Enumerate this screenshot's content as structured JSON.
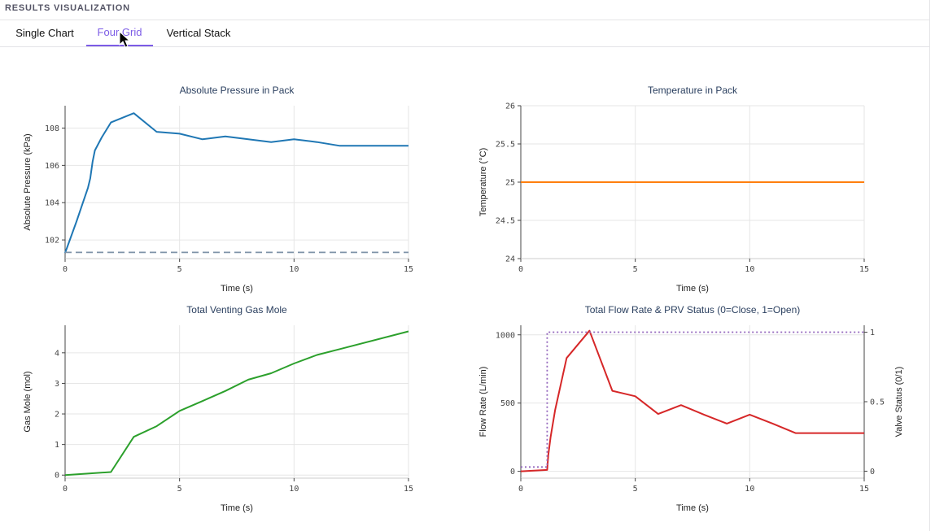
{
  "header": {
    "title": "RESULTS VISUALIZATION"
  },
  "tabs": [
    {
      "label": "Single Chart"
    },
    {
      "label": "Four Grid"
    },
    {
      "label": "Vertical Stack"
    }
  ],
  "chart_data": [
    {
      "type": "line",
      "title": "Absolute Pressure in Pack",
      "xlabel": "Time (s)",
      "ylabel": "Absolute Pressure (kPa)",
      "xlim": [
        0,
        15
      ],
      "ylim": [
        101.0,
        109.2
      ],
      "xticks": [
        0,
        5,
        10,
        15
      ],
      "yticks": [
        102,
        104,
        106,
        108
      ],
      "grid": true,
      "series": [
        {
          "color": "#1f77b4",
          "dash": "solid",
          "x": [
            0,
            0.5,
            1.0,
            1.1,
            1.2,
            1.3,
            1.6,
            2.0,
            3.0,
            4.0,
            5.0,
            6.0,
            7.0,
            8.0,
            9.0,
            10.0,
            11.0,
            12.0,
            15.0
          ],
          "y": [
            101.3,
            103.0,
            104.8,
            105.3,
            106.2,
            106.8,
            107.5,
            108.3,
            108.8,
            107.8,
            107.7,
            107.4,
            107.55,
            107.4,
            107.25,
            107.4,
            107.25,
            107.05,
            107.05
          ]
        },
        {
          "color": "#7f93a8",
          "dash": "dashed",
          "x": [
            0,
            15
          ],
          "y": [
            101.33,
            101.33
          ]
        }
      ]
    },
    {
      "type": "line",
      "title": "Temperature in Pack",
      "xlabel": "Time (s)",
      "ylabel": "Temperature (°C)",
      "xlim": [
        0,
        15
      ],
      "ylim": [
        24,
        26
      ],
      "xticks": [
        0,
        5,
        10,
        15
      ],
      "yticks": [
        24,
        24.5,
        25,
        25.5,
        26
      ],
      "grid": true,
      "series": [
        {
          "color": "#ff7f0e",
          "dash": "solid",
          "x": [
            0,
            15
          ],
          "y": [
            25,
            25
          ]
        }
      ]
    },
    {
      "type": "line",
      "title": "Total Venting Gas Mole",
      "xlabel": "Time (s)",
      "ylabel": "Gas Mole (mol)",
      "xlim": [
        0,
        15
      ],
      "ylim": [
        -0.1,
        4.9
      ],
      "xticks": [
        0,
        5,
        10,
        15
      ],
      "yticks": [
        0,
        1,
        2,
        3,
        4
      ],
      "grid": true,
      "series": [
        {
          "color": "#2ca02c",
          "dash": "solid",
          "x": [
            0,
            2.0,
            3.0,
            4.0,
            5.0,
            6.0,
            7.0,
            8.0,
            9.0,
            10.0,
            11.0,
            12.0,
            15.0
          ],
          "y": [
            0,
            0.1,
            1.25,
            1.6,
            2.1,
            2.42,
            2.75,
            3.12,
            3.33,
            3.65,
            3.93,
            4.12,
            4.7
          ]
        }
      ]
    },
    {
      "type": "line",
      "title": "Total Flow Rate & PRV Status (0=Close, 1=Open)",
      "xlabel": "Time (s)",
      "ylabel": "Flow Rate (L/min)",
      "y2label": "Valve Status (0/1)",
      "xlim": [
        0,
        15
      ],
      "ylim": [
        -50,
        1070
      ],
      "y2lim": [
        -0.05,
        1.05
      ],
      "xticks": [
        0,
        5,
        10,
        15
      ],
      "yticks": [
        0,
        500,
        1000
      ],
      "y2ticks": [
        0,
        0.5,
        1
      ],
      "grid": true,
      "series": [
        {
          "color": "#d62728",
          "dash": "solid",
          "axis": "y",
          "x": [
            0,
            1.15,
            1.2,
            1.3,
            1.5,
            2.0,
            3.0,
            4.0,
            5.0,
            6.0,
            7.0,
            8.0,
            9.0,
            10.0,
            11.0,
            12.0,
            15.0
          ],
          "y": [
            0,
            10,
            120,
            250,
            450,
            830,
            1030,
            590,
            550,
            420,
            485,
            415,
            350,
            415,
            350,
            280,
            280
          ]
        },
        {
          "color": "#9467bd",
          "dash": "dotted",
          "axis": "y2",
          "x": [
            0,
            1.15,
            1.15,
            15
          ],
          "y": [
            0.03,
            0.03,
            1.0,
            1.0
          ]
        }
      ]
    }
  ]
}
